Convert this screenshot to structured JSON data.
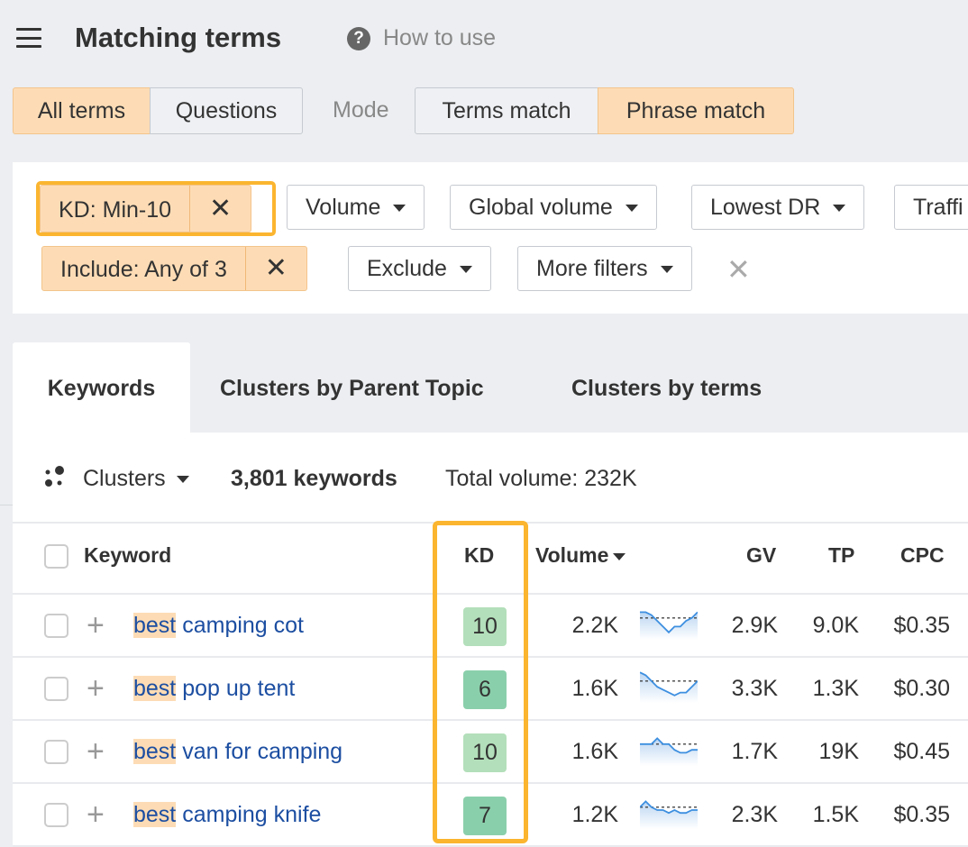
{
  "header": {
    "title": "Matching terms",
    "help_label": "How to use"
  },
  "term_tabs": [
    {
      "label": "All terms",
      "active": true
    },
    {
      "label": "Questions",
      "active": false
    }
  ],
  "mode": {
    "label": "Mode",
    "options": [
      {
        "label": "Terms match",
        "active": false
      },
      {
        "label": "Phrase match",
        "active": true
      }
    ]
  },
  "filters": {
    "kd": "KD: Min-10",
    "volume": "Volume",
    "global_volume": "Global volume",
    "lowest_dr": "Lowest DR",
    "traffic": "Traffi",
    "include": "Include: Any of 3",
    "exclude": "Exclude",
    "more": "More filters",
    "clear_icon": "close-icon"
  },
  "tabs": [
    {
      "label": "Keywords",
      "active": true
    },
    {
      "label": "Clusters by Parent Topic"
    },
    {
      "label": "Clusters by terms"
    }
  ],
  "summary": {
    "clusters": "Clusters",
    "count": "3,801 keywords",
    "total": "Total volume: 232K"
  },
  "columns": {
    "keyword": "Keyword",
    "kd": "KD",
    "volume": "Volume",
    "gv": "GV",
    "tp": "TP",
    "cpc": "CPC"
  },
  "colors": {
    "accent": "#fbb52f",
    "chip_active": "#fddcb5",
    "kd_light": "#b3dfba",
    "kd_dark": "#8acfab",
    "link": "#1c4ea1",
    "trend": "#3d8fe0"
  },
  "rows": [
    {
      "hl": "best",
      "rest": " camping cot",
      "kd": "10",
      "volume": "2.2K",
      "gv": "2.9K",
      "tp": "9.0K",
      "cpc": "$0.35",
      "kd_color": "#b3dfba",
      "trend": [
        8,
        8,
        7,
        5,
        3,
        1,
        3,
        3,
        5,
        6,
        8
      ]
    },
    {
      "hl": "best",
      "rest": " pop up tent",
      "kd": "6",
      "volume": "1.6K",
      "gv": "3.3K",
      "tp": "1.3K",
      "cpc": "$0.30",
      "kd_color": "#8acfab",
      "trend": [
        9,
        8,
        6,
        4,
        3,
        2,
        1,
        2,
        2,
        4,
        6
      ]
    },
    {
      "hl": "best",
      "rest": " van for camping",
      "kd": "10",
      "volume": "1.6K",
      "gv": "1.7K",
      "tp": "19K",
      "cpc": "$0.45",
      "kd_color": "#b3dfba",
      "trend": [
        6,
        6,
        6,
        8,
        6,
        6,
        4,
        3,
        3,
        4,
        4
      ]
    },
    {
      "hl": "best",
      "rest": " camping knife",
      "kd": "7",
      "volume": "1.2K",
      "gv": "2.3K",
      "tp": "1.5K",
      "cpc": "$0.35",
      "kd_color": "#8acfab",
      "trend": [
        6,
        8,
        6,
        5,
        5,
        4,
        5,
        4,
        4,
        5,
        5
      ]
    }
  ]
}
